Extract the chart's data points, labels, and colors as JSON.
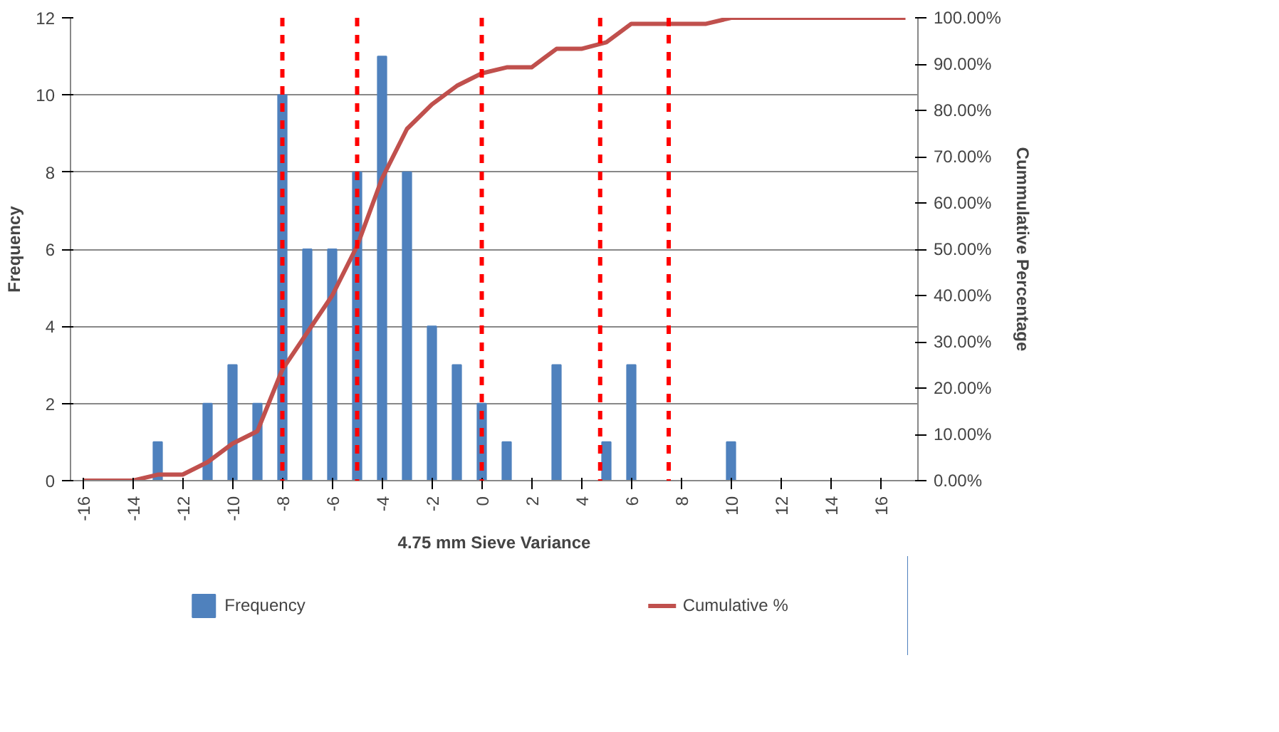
{
  "chart_data": {
    "type": "bar",
    "xlabel": "4.75 mm Sieve Variance",
    "ylabel": "Frequency",
    "y2label": "Cummulative Percentage",
    "x": [
      -16,
      -15,
      -14,
      -13,
      -12,
      -11,
      -10,
      -9,
      -8,
      -7,
      -6,
      -5,
      -4,
      -3,
      -2,
      -1,
      0,
      1,
      2,
      3,
      4,
      5,
      6,
      7,
      8,
      9,
      10,
      11,
      12,
      13,
      14,
      15,
      16,
      17
    ],
    "series": [
      {
        "name": "Frequency",
        "color": "#4f81bd",
        "values": [
          0,
          0,
          0,
          1,
          0,
          2,
          3,
          2,
          10,
          6,
          6,
          8,
          11,
          8,
          4,
          3,
          2,
          1,
          0,
          3,
          0,
          1,
          3,
          0,
          0,
          0,
          1,
          0,
          0,
          0,
          0,
          0,
          0,
          0
        ]
      },
      {
        "name": "Cumulative %",
        "type": "line",
        "axis": "y2",
        "color": "#c0504d",
        "values": [
          0,
          0,
          0,
          1.3,
          1.3,
          4,
          8,
          10.7,
          24,
          32,
          40,
          50.7,
          65.3,
          76,
          81.3,
          85.3,
          88,
          89.3,
          89.3,
          93.3,
          93.3,
          94.7,
          98.7,
          98.7,
          98.7,
          98.7,
          100,
          100,
          100,
          100,
          100,
          100,
          100,
          100
        ]
      }
    ],
    "xlim": [
      -16.5,
      17.5
    ],
    "xticks": [
      -16,
      -14,
      -12,
      -10,
      -8,
      -6,
      -4,
      -2,
      0,
      2,
      4,
      6,
      8,
      10,
      12,
      14,
      16
    ],
    "ylim": [
      0,
      12
    ],
    "yticks": [
      0,
      2,
      4,
      6,
      8,
      10,
      12
    ],
    "y2lim": [
      0,
      100
    ],
    "y2ticks": [
      {
        "value": 0,
        "label": "0.00%"
      },
      {
        "value": 10,
        "label": "10.00%"
      },
      {
        "value": 20,
        "label": "20.00%"
      },
      {
        "value": 30,
        "label": "30.00%"
      },
      {
        "value": 40,
        "label": "40.00%"
      },
      {
        "value": 50,
        "label": "50.00%"
      },
      {
        "value": 60,
        "label": "60.00%"
      },
      {
        "value": 70,
        "label": "70.00%"
      },
      {
        "value": 80,
        "label": "80.00%"
      },
      {
        "value": 90,
        "label": "90.00%"
      },
      {
        "value": 100,
        "label": "100.00%"
      }
    ],
    "ref_lines": [
      {
        "axis": "x",
        "value": -8,
        "color": "#ff0000",
        "line_style": "dashed"
      },
      {
        "axis": "x",
        "value": -5,
        "color": "#ff0000",
        "line_style": "dashed"
      },
      {
        "axis": "x",
        "value": 0,
        "color": "#ff0000",
        "line_style": "dashed"
      },
      {
        "axis": "x",
        "value": 4.75,
        "color": "#ff0000",
        "line_style": "dashed"
      },
      {
        "axis": "x",
        "value": 7.5,
        "color": "#ff0000",
        "line_style": "dashed"
      }
    ],
    "grid": "y",
    "legend": "bottom"
  }
}
